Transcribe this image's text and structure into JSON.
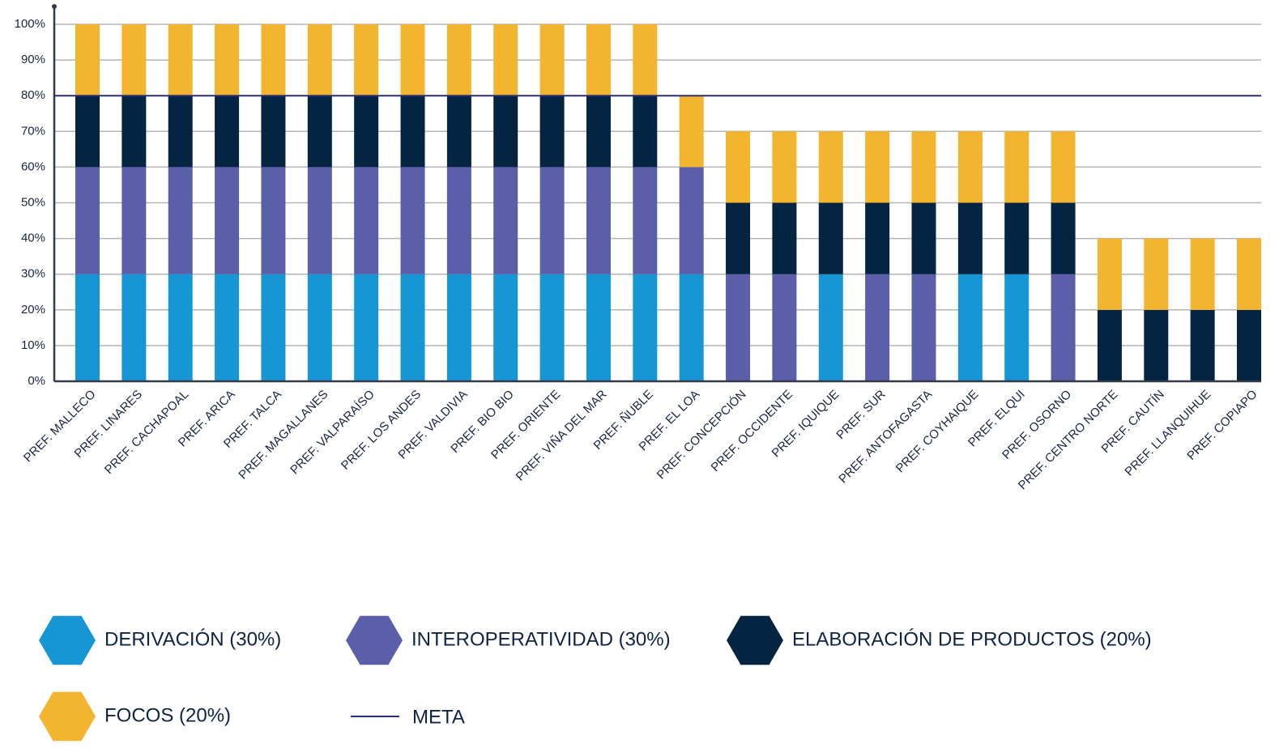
{
  "chart_data": {
    "type": "stacked_bar",
    "categories": [
      "PREF. MALLECO",
      "PREF. LINARES",
      "PREF. CACHAPOAL",
      "PREF. ARICA",
      "PREF. TALCA",
      "PREF. MAGALLANES",
      "PREF. VALPARAÍSO",
      "PREF. LOS ANDES",
      "PREF. VALDIVIA",
      "PREF. BIO BIO",
      "PREF. ORIENTE",
      "PREF. VIÑA DEL MAR",
      "PREF. ÑUBLE",
      "PREF. EL LOA",
      "PREF. CONCEPCIÓN",
      "PREF. OCCIDENTE",
      "PREF. IQUIQUE",
      "PREF. SUR",
      "PREF. ANTOFAGASTA",
      "PREF. COYHAIQUE",
      "PREF. ELQUI",
      "PREF. OSORNO",
      "PREF. CENTRO NORTE",
      "PREF. CAUTÍN",
      "PREF. LLANQUIHUE",
      "PREF. COPIAPO"
    ],
    "series": [
      {
        "name": "DERIVACIÓN (30%)",
        "color": "#1796d6",
        "values": [
          30,
          30,
          30,
          30,
          30,
          30,
          30,
          30,
          30,
          30,
          30,
          30,
          30,
          30,
          0,
          0,
          30,
          0,
          0,
          30,
          30,
          0,
          0,
          0,
          0,
          0
        ]
      },
      {
        "name": "INTEROPERATIVIDAD (30%)",
        "color": "#5b5ea9",
        "values": [
          30,
          30,
          30,
          30,
          30,
          30,
          30,
          30,
          30,
          30,
          30,
          30,
          30,
          30,
          30,
          30,
          0,
          30,
          30,
          0,
          0,
          30,
          0,
          0,
          0,
          0
        ]
      },
      {
        "name": "ELABORACIÓN DE PRODUCTOS (20%)",
        "color": "#052441",
        "values": [
          20,
          20,
          20,
          20,
          20,
          20,
          20,
          20,
          20,
          20,
          20,
          20,
          20,
          0,
          20,
          20,
          20,
          20,
          20,
          20,
          20,
          20,
          20,
          20,
          20,
          20
        ]
      },
      {
        "name": "FOCOS (20%)",
        "color": "#f3b530",
        "values": [
          20,
          20,
          20,
          20,
          20,
          20,
          20,
          20,
          20,
          20,
          20,
          20,
          20,
          20,
          20,
          20,
          20,
          20,
          20,
          20,
          20,
          20,
          20,
          20,
          20,
          20
        ]
      }
    ],
    "meta": {
      "label": "META",
      "value": 80,
      "color": "#2b2e7a"
    },
    "ylim": [
      0,
      100
    ],
    "yticks": [
      {
        "value": 0,
        "label": "0%"
      },
      {
        "value": 10,
        "label": "10%"
      },
      {
        "value": 20,
        "label": "20%"
      },
      {
        "value": 30,
        "label": "30%"
      },
      {
        "value": 40,
        "label": "40%"
      },
      {
        "value": 50,
        "label": "50%"
      },
      {
        "value": 60,
        "label": "60%"
      },
      {
        "value": 70,
        "label": "70%"
      },
      {
        "value": 80,
        "label": "80%"
      },
      {
        "value": 90,
        "label": "90%"
      },
      {
        "value": 100,
        "label": "100%"
      }
    ],
    "grid": true
  }
}
